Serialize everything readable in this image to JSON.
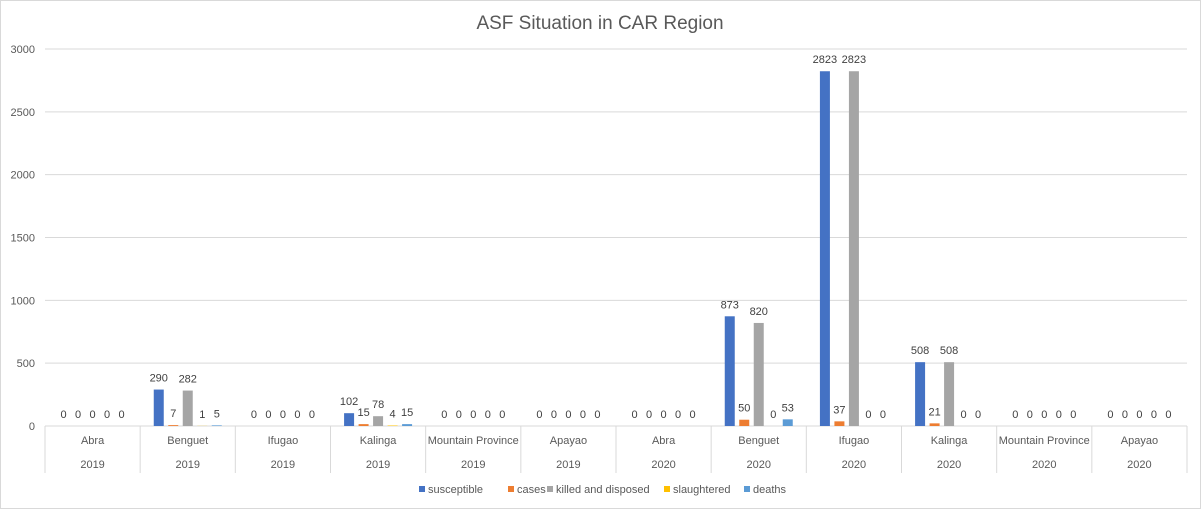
{
  "chart_data": {
    "type": "bar",
    "title": "ASF Situation in CAR Region",
    "xlabel": "",
    "ylabel": "",
    "ylim": [
      0,
      3000
    ],
    "yticks": [
      0,
      500,
      1000,
      1500,
      2000,
      2500,
      3000
    ],
    "grid": true,
    "legend_position": "bottom",
    "categories": [
      {
        "label": "Abra",
        "year": "2019"
      },
      {
        "label": "Benguet",
        "year": "2019"
      },
      {
        "label": "Ifugao",
        "year": "2019"
      },
      {
        "label": "Kalinga",
        "year": "2019"
      },
      {
        "label": "Mountain Province",
        "year": "2019"
      },
      {
        "label": "Apayao",
        "year": "2019"
      },
      {
        "label": "Abra",
        "year": "2020"
      },
      {
        "label": "Benguet",
        "year": "2020"
      },
      {
        "label": "Ifugao",
        "year": "2020"
      },
      {
        "label": "Kalinga",
        "year": "2020"
      },
      {
        "label": "Mountain Province",
        "year": "2020"
      },
      {
        "label": "Apayao",
        "year": "2020"
      }
    ],
    "series": [
      {
        "name": "susceptible",
        "color": "#4472C4",
        "values": [
          0,
          290,
          0,
          102,
          0,
          0,
          0,
          873,
          2823,
          508,
          0,
          0
        ]
      },
      {
        "name": "cases",
        "color": "#ED7D31",
        "values": [
          0,
          7,
          0,
          15,
          0,
          0,
          0,
          50,
          37,
          21,
          0,
          0
        ]
      },
      {
        "name": "killed and disposed",
        "color": "#A5A5A5",
        "values": [
          0,
          282,
          0,
          78,
          0,
          0,
          0,
          820,
          2823,
          508,
          0,
          0
        ]
      },
      {
        "name": "slaughtered",
        "color": "#FFC000",
        "values": [
          0,
          1,
          0,
          4,
          0,
          0,
          0,
          null,
          null,
          null,
          0,
          0
        ]
      },
      {
        "name": "deaths",
        "color": "#5B9BD5",
        "values": [
          0,
          5,
          0,
          15,
          0,
          0,
          0,
          53,
          null,
          null,
          0,
          0
        ]
      }
    ],
    "data_labels": [
      [
        "0",
        "290",
        "0",
        "102",
        "0",
        "0",
        "0",
        "873",
        "2823",
        "508",
        "0",
        "0"
      ],
      [
        "0",
        "7",
        "0",
        "15",
        "0",
        "0",
        "0",
        "50",
        "37",
        "21",
        "0",
        "0"
      ],
      [
        "0",
        "282",
        "0",
        "78",
        "0",
        "0",
        "0",
        "820",
        "2823",
        "508",
        "0",
        "0"
      ],
      [
        "0",
        "1",
        "0",
        "4",
        "0",
        "0",
        "0",
        "0",
        "0",
        "0",
        "0",
        "0"
      ],
      [
        "0",
        "5",
        "0",
        "15",
        "0",
        "0",
        "0",
        "53",
        "0",
        "0",
        "0",
        "0"
      ]
    ]
  }
}
